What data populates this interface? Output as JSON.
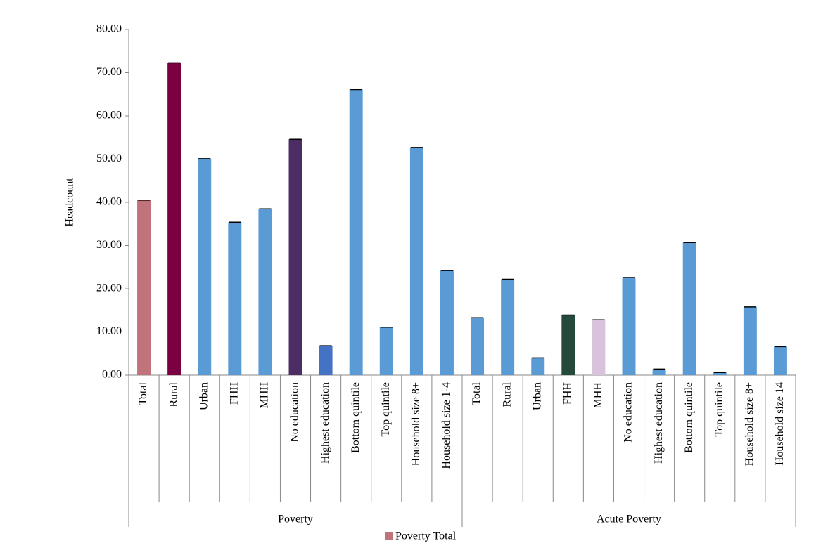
{
  "chart_data": {
    "type": "bar",
    "y_label": "Headcount",
    "groups": [
      {
        "name": "Poverty",
        "categories": [
          "Total",
          "Rural",
          "Urban",
          "FHH",
          "MHH",
          "No education",
          "Highest education",
          "Bottom quintile",
          "Top quintile",
          "Household size 8+",
          "Household size 1-4"
        ]
      },
      {
        "name": "Acute Poverty",
        "categories": [
          "Total",
          "Rural",
          "Urban",
          "FHH",
          "MHH",
          "No education",
          "Highest education",
          "Bottom quintile",
          "Top quintile",
          "Household size 8+",
          "Household size 14"
        ]
      }
    ],
    "series": [
      {
        "name": "Poverty Total",
        "color": "#c0737a",
        "values": [
          40.5,
          72.3,
          50.1,
          35.4,
          38.5,
          54.6,
          6.8,
          66.1,
          11.1,
          52.7,
          24.2,
          13.3,
          22.2,
          4.0,
          13.9,
          12.8,
          22.6,
          1.4,
          30.7,
          0.6,
          15.8,
          6.6
        ],
        "bar_colors": [
          "#c0737a",
          "#7b0041",
          "#5b9bd5",
          "#5b9bd5",
          "#5b9bd5",
          "#4b2c63",
          "#4472c4",
          "#5b9bd5",
          "#5b9bd5",
          "#5b9bd5",
          "#5b9bd5",
          "#5b9bd5",
          "#5b9bd5",
          "#5b9bd5",
          "#254a3c",
          "#d9c3dc",
          "#5b9bd5",
          "#5b9bd5",
          "#5b9bd5",
          "#5b9bd5",
          "#5b9bd5",
          "#5b9bd5"
        ]
      }
    ],
    "ylim": [
      0,
      80
    ],
    "yticks": [
      {
        "value": 0,
        "label": "0.00"
      },
      {
        "value": 10,
        "label": "10.00"
      },
      {
        "value": 20,
        "label": "20.00"
      },
      {
        "value": 30,
        "label": "30.00"
      },
      {
        "value": 40,
        "label": "40.00"
      },
      {
        "value": 50,
        "label": "50.00"
      },
      {
        "value": 60,
        "label": "60.00"
      },
      {
        "value": 70,
        "label": "70.00"
      },
      {
        "value": 80,
        "label": "80.00"
      }
    ],
    "grid": false
  }
}
